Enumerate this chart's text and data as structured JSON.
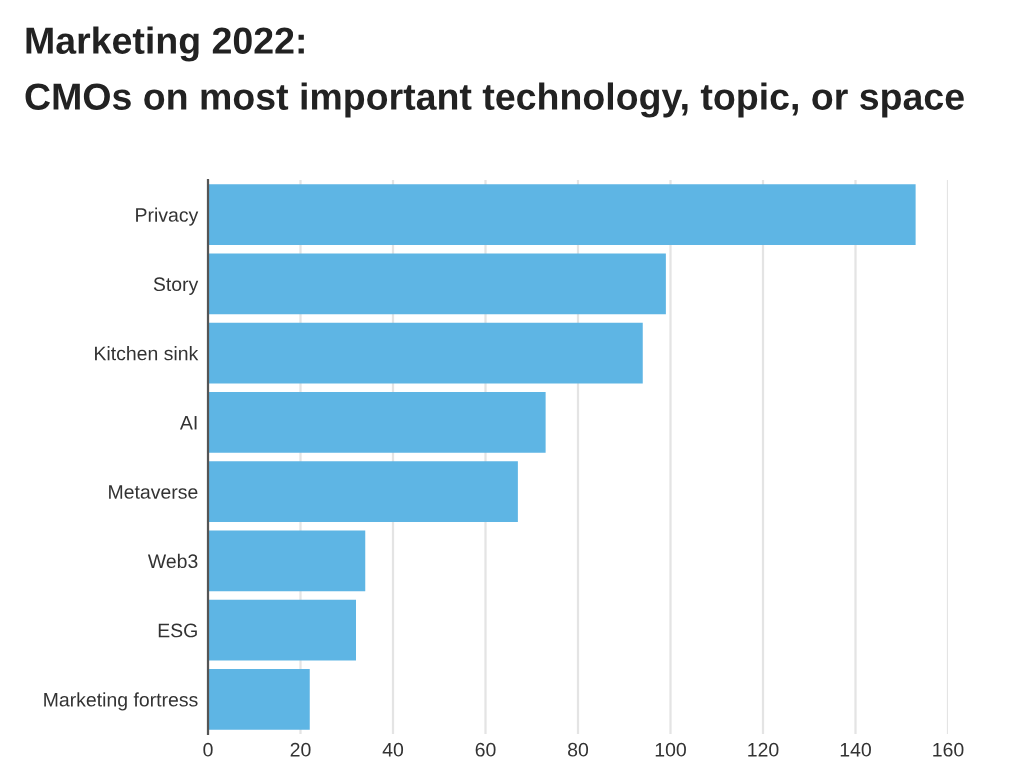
{
  "chart_data": {
    "type": "bar",
    "orientation": "horizontal",
    "title": "Marketing 2022:",
    "subtitle": "CMOs on most important technology, topic, or space",
    "categories": [
      "Privacy",
      "Story",
      "Kitchen sink",
      "AI",
      "Metaverse",
      "Web3",
      "ESG",
      "Marketing fortress"
    ],
    "values": [
      153,
      99,
      94,
      73,
      67,
      34,
      32,
      22
    ],
    "color": "#5eb5e4",
    "xlim": [
      0,
      160
    ],
    "xticks": [
      0,
      20,
      40,
      60,
      80,
      100,
      120,
      140,
      160
    ],
    "grid": "x"
  }
}
